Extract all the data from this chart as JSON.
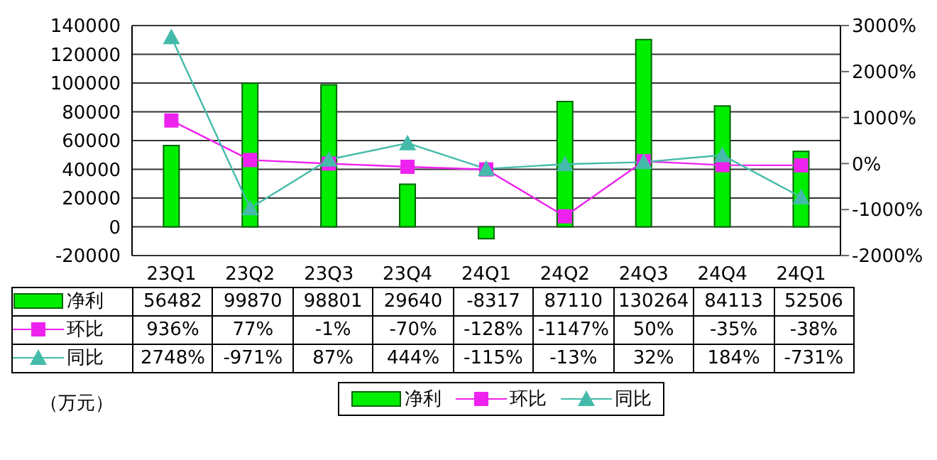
{
  "chart_data": {
    "type": "bar",
    "categories": [
      "23Q1",
      "23Q2",
      "23Q3",
      "23Q4",
      "24Q1",
      "24Q2",
      "24Q3",
      "24Q4",
      "24Q1"
    ],
    "series": [
      {
        "name": "净利",
        "color": "#00ee00",
        "values": [
          56482,
          99870,
          98801,
          29640,
          -8317,
          87110,
          130264,
          84113,
          52506
        ],
        "value_labels": [
          "56482",
          "99870",
          "98801",
          "29640",
          "-8317",
          "87110",
          "130264",
          "84113",
          "52506"
        ]
      },
      {
        "name": "环比",
        "type": "line",
        "axis": "y2",
        "marker": "square",
        "color": "#ee22ee",
        "values": [
          936,
          77,
          -1,
          -70,
          -128,
          -1147,
          50,
          -35,
          -38
        ],
        "value_labels": [
          "936%",
          "77%",
          "-1%",
          "-70%",
          "-128%",
          "-1147%",
          "50%",
          "-35%",
          "-38%"
        ]
      },
      {
        "name": "同比",
        "type": "line",
        "axis": "y2",
        "marker": "triangle",
        "color": "#44bbaa",
        "values": [
          2748,
          -971,
          87,
          444,
          -115,
          -13,
          32,
          184,
          -731
        ],
        "value_labels": [
          "2748%",
          "-971%",
          "87%",
          "444%",
          "-115%",
          "-13%",
          "32%",
          "184%",
          "-731%"
        ]
      }
    ],
    "ylim": [
      -20000,
      140000
    ],
    "yticks": [
      -20000,
      0,
      20000,
      40000,
      60000,
      80000,
      100000,
      120000,
      140000
    ],
    "y2lim": [
      -2000,
      3000
    ],
    "y2ticks": [
      {
        "value": -2000,
        "label": "-2000%"
      },
      {
        "value": -1000,
        "label": "-1000%"
      },
      {
        "value": 0,
        "label": "0%"
      },
      {
        "value": 1000,
        "label": "1000%"
      },
      {
        "value": 2000,
        "label": "2000%"
      },
      {
        "value": 3000,
        "label": "3000%"
      }
    ],
    "grid": "y",
    "legend": "bottom",
    "annotations": [
      "（万元）"
    ]
  }
}
